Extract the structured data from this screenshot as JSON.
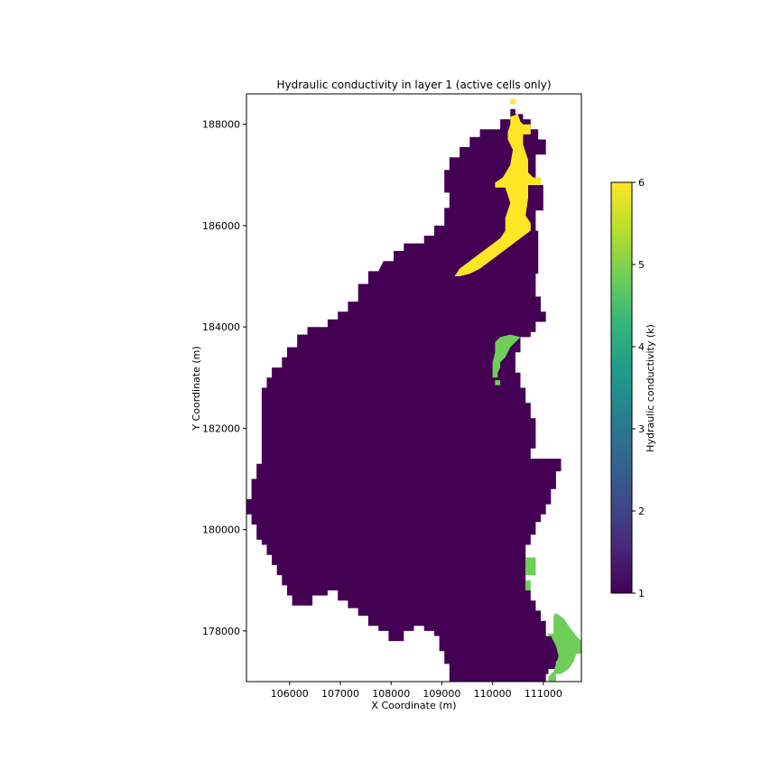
{
  "chart_data": {
    "type": "heatmap",
    "title": "Hydraulic conductivity in layer 1 (active cells only)",
    "xlabel": "X Coordinate (m)",
    "ylabel": "Y Coordinate (m)",
    "xlim": [
      105150,
      111750
    ],
    "ylim": [
      177000,
      188600
    ],
    "x_ticks": [
      106000,
      107000,
      108000,
      109000,
      110000,
      111000
    ],
    "y_ticks": [
      178000,
      180000,
      182000,
      184000,
      186000,
      188000
    ],
    "grid": false,
    "colormap": "viridis",
    "colorbar": {
      "label": "Hydraulic conductivity (k)",
      "min": 1,
      "max": 6,
      "ticks": [
        1,
        2,
        3,
        4,
        5,
        6
      ],
      "colors": [
        "#440154",
        "#482878",
        "#3e4a89",
        "#31688e",
        "#26828e",
        "#1f9e89",
        "#35b779",
        "#6ece58",
        "#b5de2b",
        "#fde725"
      ]
    },
    "values_present": [
      1,
      5,
      6
    ],
    "region_1_boundary": [
      [
        105150,
        180600
      ],
      [
        105250,
        180600
      ],
      [
        105250,
        181000
      ],
      [
        105350,
        181000
      ],
      [
        105350,
        181300
      ],
      [
        105450,
        181300
      ],
      [
        105450,
        182800
      ],
      [
        105550,
        182800
      ],
      [
        105550,
        183000
      ],
      [
        105650,
        183000
      ],
      [
        105650,
        183200
      ],
      [
        105850,
        183200
      ],
      [
        105850,
        183400
      ],
      [
        105950,
        183400
      ],
      [
        105950,
        183600
      ],
      [
        106150,
        183600
      ],
      [
        106150,
        183850
      ],
      [
        106350,
        183850
      ],
      [
        106350,
        184000
      ],
      [
        106750,
        184000
      ],
      [
        106750,
        184150
      ],
      [
        106950,
        184150
      ],
      [
        106950,
        184300
      ],
      [
        107150,
        184300
      ],
      [
        107150,
        184500
      ],
      [
        107350,
        184500
      ],
      [
        107350,
        184850
      ],
      [
        107550,
        184850
      ],
      [
        107550,
        185100
      ],
      [
        107750,
        185100
      ],
      [
        107850,
        185300
      ],
      [
        108050,
        185300
      ],
      [
        108050,
        185500
      ],
      [
        108250,
        185500
      ],
      [
        108250,
        185650
      ],
      [
        108650,
        185650
      ],
      [
        108650,
        185800
      ],
      [
        108850,
        185800
      ],
      [
        108850,
        186000
      ],
      [
        109050,
        186000
      ],
      [
        109050,
        186350
      ],
      [
        109150,
        186350
      ],
      [
        109150,
        186650
      ],
      [
        109050,
        186650
      ],
      [
        109050,
        187100
      ],
      [
        109150,
        187100
      ],
      [
        109150,
        187350
      ],
      [
        109350,
        187350
      ],
      [
        109350,
        187550
      ],
      [
        109550,
        187550
      ],
      [
        109550,
        187750
      ],
      [
        109750,
        187750
      ],
      [
        109750,
        187900
      ],
      [
        110150,
        187900
      ],
      [
        110150,
        188100
      ],
      [
        110350,
        188100
      ],
      [
        110350,
        188300
      ],
      [
        110450,
        188300
      ],
      [
        110450,
        188200
      ],
      [
        110600,
        188200
      ],
      [
        110600,
        188100
      ],
      [
        110750,
        188100
      ],
      [
        110750,
        187900
      ],
      [
        110900,
        187900
      ],
      [
        110900,
        187700
      ],
      [
        111050,
        187700
      ],
      [
        111050,
        187400
      ],
      [
        110850,
        187400
      ],
      [
        110850,
        186800
      ],
      [
        111000,
        186800
      ],
      [
        111000,
        186300
      ],
      [
        110850,
        186300
      ],
      [
        110850,
        185900
      ],
      [
        110900,
        185900
      ],
      [
        110900,
        185050
      ],
      [
        110850,
        185050
      ],
      [
        110850,
        184600
      ],
      [
        110950,
        184600
      ],
      [
        110950,
        184300
      ],
      [
        111050,
        184300
      ],
      [
        111050,
        184100
      ],
      [
        110850,
        184100
      ],
      [
        110850,
        183900
      ],
      [
        110750,
        183900
      ],
      [
        110750,
        183800
      ],
      [
        110550,
        183800
      ],
      [
        110550,
        183500
      ],
      [
        110450,
        183500
      ],
      [
        110450,
        183100
      ],
      [
        110550,
        183100
      ],
      [
        110550,
        182800
      ],
      [
        110650,
        182800
      ],
      [
        110650,
        182500
      ],
      [
        110750,
        182500
      ],
      [
        110750,
        182200
      ],
      [
        110850,
        182200
      ],
      [
        110850,
        181600
      ],
      [
        110750,
        181600
      ],
      [
        110750,
        181400
      ],
      [
        111350,
        181400
      ],
      [
        111350,
        181150
      ],
      [
        111250,
        181150
      ],
      [
        111250,
        180800
      ],
      [
        111150,
        180800
      ],
      [
        111150,
        180500
      ],
      [
        111050,
        180500
      ],
      [
        111050,
        180300
      ],
      [
        110950,
        180300
      ],
      [
        110950,
        180150
      ],
      [
        110850,
        180150
      ],
      [
        110850,
        179900
      ],
      [
        110750,
        179900
      ],
      [
        110750,
        179700
      ],
      [
        110650,
        179700
      ],
      [
        110650,
        178800
      ],
      [
        110750,
        178800
      ],
      [
        110750,
        178600
      ],
      [
        110850,
        178600
      ],
      [
        110850,
        178400
      ],
      [
        110950,
        178400
      ],
      [
        110950,
        178200
      ],
      [
        111050,
        178200
      ],
      [
        111050,
        177900
      ],
      [
        111250,
        177900
      ],
      [
        111250,
        177700
      ],
      [
        111450,
        177700
      ],
      [
        111450,
        177600
      ],
      [
        111350,
        177600
      ],
      [
        111350,
        177400
      ],
      [
        111250,
        177400
      ],
      [
        111250,
        177250
      ],
      [
        111100,
        177250
      ],
      [
        111100,
        177150
      ],
      [
        111050,
        177150
      ],
      [
        111050,
        177000
      ],
      [
        109150,
        177000
      ],
      [
        109150,
        177350
      ],
      [
        109050,
        177350
      ],
      [
        109050,
        177600
      ],
      [
        108950,
        177600
      ],
      [
        108950,
        177900
      ],
      [
        108850,
        177900
      ],
      [
        108850,
        178000
      ],
      [
        108650,
        178000
      ],
      [
        108650,
        178100
      ],
      [
        108450,
        178100
      ],
      [
        108450,
        178000
      ],
      [
        108250,
        178000
      ],
      [
        108250,
        177800
      ],
      [
        107950,
        177800
      ],
      [
        107950,
        178000
      ],
      [
        107750,
        178000
      ],
      [
        107750,
        178100
      ],
      [
        107550,
        178100
      ],
      [
        107550,
        178300
      ],
      [
        107350,
        178300
      ],
      [
        107350,
        178450
      ],
      [
        107150,
        178450
      ],
      [
        107150,
        178600
      ],
      [
        106950,
        178600
      ],
      [
        106950,
        178800
      ],
      [
        106750,
        178800
      ],
      [
        106750,
        178700
      ],
      [
        106450,
        178700
      ],
      [
        106450,
        178500
      ],
      [
        106050,
        178500
      ],
      [
        106050,
        178700
      ],
      [
        105950,
        178700
      ],
      [
        105950,
        178900
      ],
      [
        105850,
        178900
      ],
      [
        105850,
        179100
      ],
      [
        105750,
        179100
      ],
      [
        105750,
        179300
      ],
      [
        105650,
        179300
      ],
      [
        105650,
        179500
      ],
      [
        105550,
        179500
      ],
      [
        105550,
        179700
      ],
      [
        105450,
        179700
      ],
      [
        105450,
        179800
      ],
      [
        105350,
        179800
      ],
      [
        105350,
        180100
      ],
      [
        105250,
        180100
      ],
      [
        105250,
        180300
      ],
      [
        105150,
        180300
      ]
    ],
    "region_6_boundary": [
      [
        109250,
        185000
      ],
      [
        109350,
        185150
      ],
      [
        109550,
        185300
      ],
      [
        109750,
        185450
      ],
      [
        109950,
        185600
      ],
      [
        110150,
        185750
      ],
      [
        110250,
        185900
      ],
      [
        110250,
        186150
      ],
      [
        110350,
        186450
      ],
      [
        110250,
        186750
      ],
      [
        110050,
        186750
      ],
      [
        110050,
        186850
      ],
      [
        110200,
        186950
      ],
      [
        110350,
        187200
      ],
      [
        110400,
        187500
      ],
      [
        110300,
        187700
      ],
      [
        110300,
        187850
      ],
      [
        110350,
        188000
      ],
      [
        110350,
        188150
      ],
      [
        110500,
        188200
      ],
      [
        110550,
        188050
      ],
      [
        110600,
        188000
      ],
      [
        110750,
        188000
      ],
      [
        110750,
        187800
      ],
      [
        110600,
        187800
      ],
      [
        110600,
        187600
      ],
      [
        110700,
        187300
      ],
      [
        110700,
        187050
      ],
      [
        110800,
        186950
      ],
      [
        110950,
        186950
      ],
      [
        110950,
        186800
      ],
      [
        110700,
        186800
      ],
      [
        110700,
        186550
      ],
      [
        110650,
        186200
      ],
      [
        110750,
        186050
      ],
      [
        110750,
        185900
      ],
      [
        110550,
        185750
      ],
      [
        110350,
        185600
      ],
      [
        110150,
        185450
      ],
      [
        109950,
        185300
      ],
      [
        109750,
        185150
      ],
      [
        109550,
        185050
      ],
      [
        109350,
        185000
      ]
    ],
    "region_6_extra": [
      [
        110350,
        188400
      ],
      [
        110450,
        188400
      ],
      [
        110450,
        188500
      ],
      [
        110350,
        188500
      ]
    ],
    "region_5_patches": [
      [
        [
          110000,
          183000
        ],
        [
          110100,
          183000
        ],
        [
          110100,
          183100
        ],
        [
          110150,
          183200
        ],
        [
          110150,
          183300
        ],
        [
          110250,
          183400
        ],
        [
          110350,
          183600
        ],
        [
          110450,
          183700
        ],
        [
          110550,
          183800
        ],
        [
          110350,
          183850
        ],
        [
          110150,
          183800
        ],
        [
          110050,
          183700
        ],
        [
          110050,
          183500
        ],
        [
          110000,
          183300
        ]
      ],
      [
        [
          110050,
          182850
        ],
        [
          110150,
          182850
        ],
        [
          110150,
          182950
        ],
        [
          110050,
          182950
        ]
      ],
      [
        [
          110650,
          179100
        ],
        [
          110850,
          179100
        ],
        [
          110850,
          179450
        ],
        [
          110650,
          179450
        ]
      ],
      [
        [
          110650,
          178800
        ],
        [
          110750,
          178800
        ],
        [
          110750,
          179000
        ],
        [
          110650,
          179000
        ]
      ],
      [
        [
          111050,
          177950
        ],
        [
          111200,
          177950
        ],
        [
          111200,
          178300
        ],
        [
          111250,
          178350
        ],
        [
          111400,
          178250
        ],
        [
          111500,
          178100
        ],
        [
          111650,
          177900
        ],
        [
          111750,
          177800
        ],
        [
          111750,
          177550
        ],
        [
          111650,
          177550
        ],
        [
          111600,
          177400
        ],
        [
          111500,
          177250
        ],
        [
          111350,
          177150
        ],
        [
          111250,
          177150
        ],
        [
          111250,
          177000
        ],
        [
          111100,
          177000
        ],
        [
          111100,
          177100
        ],
        [
          111200,
          177200
        ],
        [
          111250,
          177350
        ],
        [
          111300,
          177500
        ],
        [
          111250,
          177700
        ],
        [
          111150,
          177900
        ]
      ],
      [
        [
          111650,
          177550
        ],
        [
          111750,
          177550
        ],
        [
          111750,
          177700
        ],
        [
          111650,
          177700
        ]
      ]
    ]
  }
}
